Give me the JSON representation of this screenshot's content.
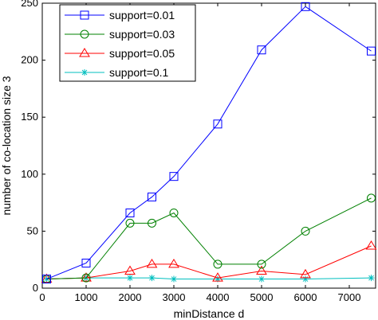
{
  "chart_data": {
    "type": "line",
    "xlabel": "minDistance d",
    "ylabel": "number of co-location size 3",
    "xlim": [
      0,
      7600
    ],
    "ylim": [
      0,
      250
    ],
    "xticks": [
      0,
      1000,
      2000,
      3000,
      4000,
      5000,
      6000,
      7000
    ],
    "yticks": [
      0,
      50,
      100,
      150,
      200,
      250
    ],
    "grid": false,
    "legend_position": "top-left",
    "x": [
      100,
      1000,
      2000,
      2500,
      3000,
      4000,
      5000,
      6000,
      7500
    ],
    "series": [
      {
        "name": "support=0.01",
        "color": "#0000ff",
        "marker": "square",
        "values": [
          8,
          22,
          66,
          80,
          98,
          144,
          209,
          247,
          208
        ]
      },
      {
        "name": "support=0.03",
        "color": "#008000",
        "marker": "circle",
        "values": [
          8,
          9,
          57,
          57,
          66,
          21,
          21,
          50,
          79
        ]
      },
      {
        "name": "support=0.05",
        "color": "#ff0000",
        "marker": "triangle",
        "values": [
          8,
          9,
          15,
          21,
          21,
          9,
          15,
          12,
          37
        ]
      },
      {
        "name": "support=0.1",
        "color": "#00bfbf",
        "marker": "star",
        "values": [
          8,
          9,
          9,
          9,
          8,
          8,
          8,
          8,
          9
        ]
      }
    ]
  }
}
